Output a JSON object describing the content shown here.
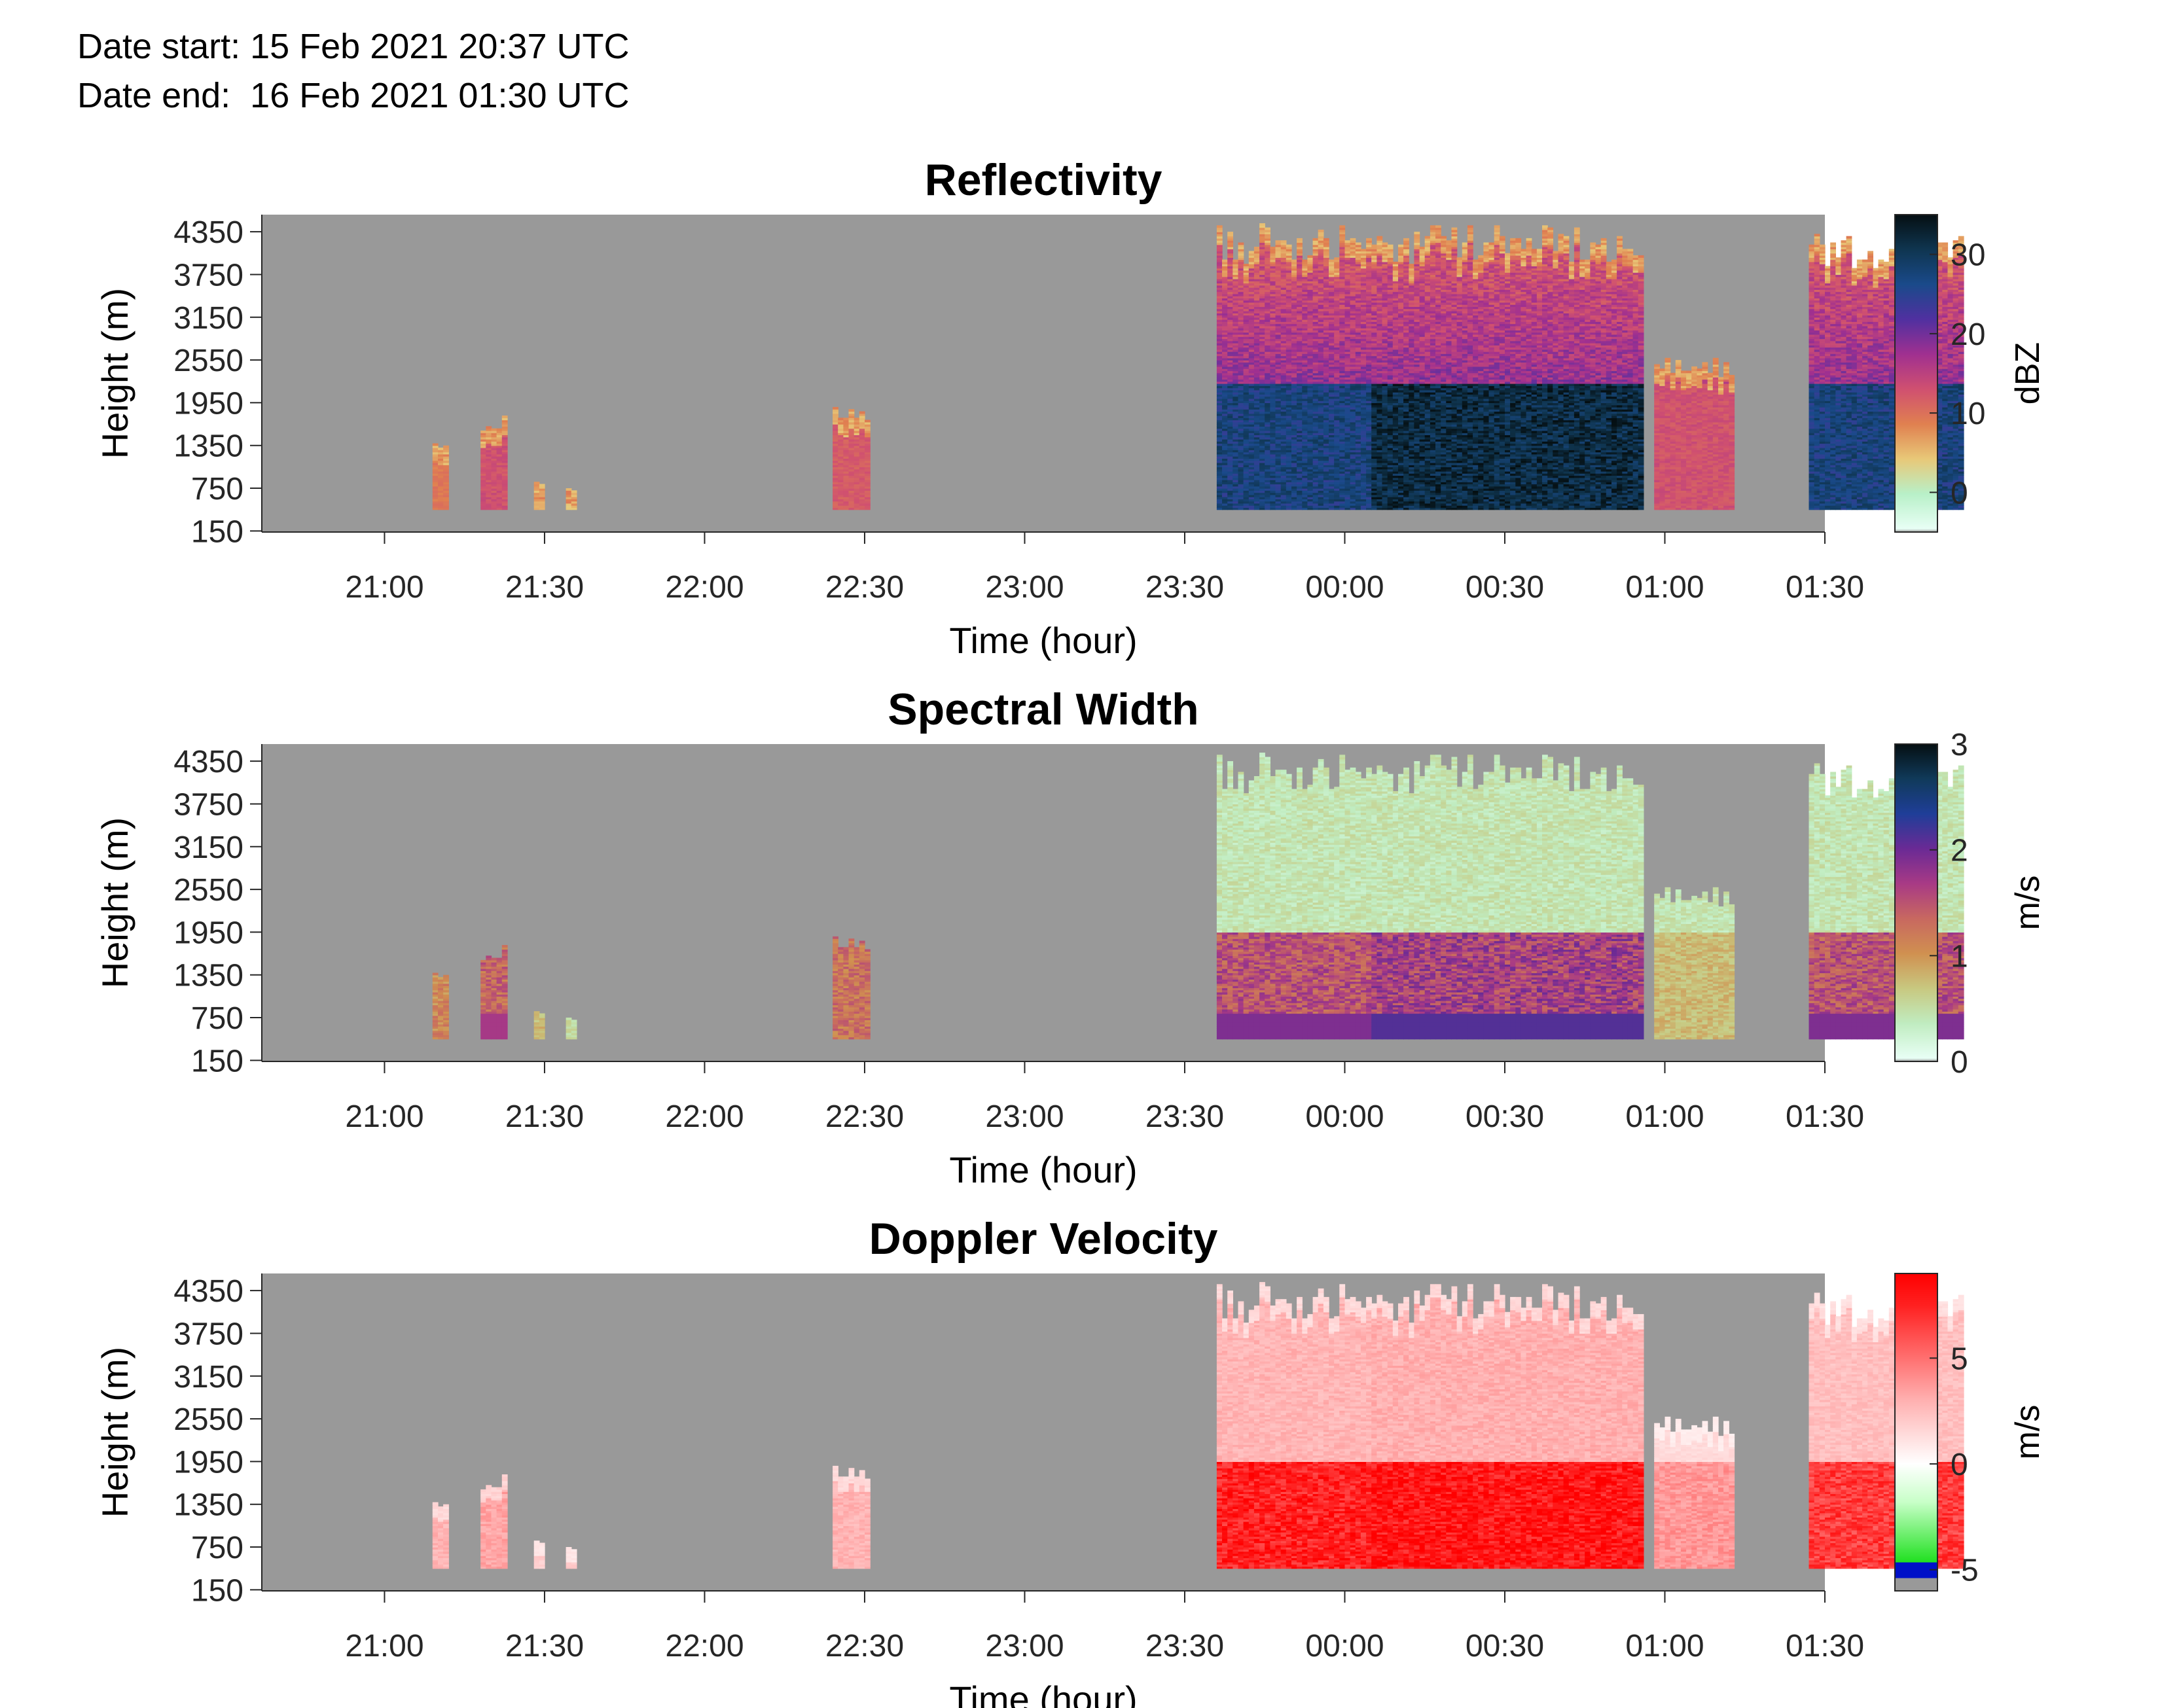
{
  "header": {
    "date_start": "Date start: 15 Feb 2021 20:37 UTC",
    "date_end": "Date end:  16 Feb 2021 01:30 UTC"
  },
  "colors": {
    "background_gray": "#999999",
    "axis_color": "#262626"
  },
  "chart_data": [
    {
      "type": "heatmap",
      "title": "Reflectivity",
      "xlabel": "Time (hour)",
      "ylabel": "Height (m)",
      "xticks": [
        "21:00",
        "21:30",
        "22:00",
        "22:30",
        "23:00",
        "23:30",
        "00:00",
        "00:30",
        "01:00",
        "01:30"
      ],
      "yticks": [
        "150",
        "750",
        "1350",
        "1950",
        "2550",
        "3150",
        "3750",
        "4350"
      ],
      "x_range_min": [
        -23,
        270
      ],
      "y_range_m": [
        150,
        4350
      ],
      "colorbar": {
        "label": "dBZ",
        "ticks": [
          "0",
          "10",
          "20",
          "30"
        ],
        "range": [
          -5,
          35
        ]
      },
      "colormap": "reflectivity",
      "echo_regions": [
        {
          "t": [
            9,
            12
          ],
          "h": [
            450,
            1450
          ],
          "peak": 10
        },
        {
          "t": [
            18,
            23
          ],
          "h": [
            450,
            1750
          ],
          "peak": 14
        },
        {
          "t": [
            28,
            30
          ],
          "h": [
            450,
            850
          ],
          "peak": 6
        },
        {
          "t": [
            34,
            36
          ],
          "h": [
            450,
            750
          ],
          "peak": 4
        },
        {
          "t": [
            84,
            91
          ],
          "h": [
            450,
            1900
          ],
          "peak": 13
        },
        {
          "t": [
            156,
            185
          ],
          "h": [
            450,
            4450
          ],
          "peak": 30
        },
        {
          "t": [
            185,
            236
          ],
          "h": [
            450,
            4450
          ],
          "peak": 35
        },
        {
          "t": [
            238,
            253
          ],
          "h": [
            450,
            2600
          ],
          "peak": 14
        },
        {
          "t": [
            267,
            296
          ],
          "h": [
            450,
            4400
          ],
          "peak": 30
        }
      ]
    },
    {
      "type": "heatmap",
      "title": "Spectral Width",
      "xlabel": "Time (hour)",
      "ylabel": "Height (m)",
      "xticks": [
        "21:00",
        "21:30",
        "22:00",
        "22:30",
        "23:00",
        "23:30",
        "00:00",
        "00:30",
        "01:00",
        "01:30"
      ],
      "yticks": [
        "150",
        "750",
        "1350",
        "1950",
        "2550",
        "3150",
        "3750",
        "4350"
      ],
      "x_range_min": [
        -23,
        270
      ],
      "y_range_m": [
        150,
        4350
      ],
      "colorbar": {
        "label": "m/s",
        "ticks": [
          "0",
          "1",
          "2",
          "3"
        ],
        "range": [
          0,
          3
        ]
      },
      "colormap": "spectral_width",
      "echo_regions": [
        {
          "t": [
            9,
            12
          ],
          "h": [
            450,
            1450
          ],
          "peak": 1.3
        },
        {
          "t": [
            18,
            23
          ],
          "h": [
            450,
            1750
          ],
          "peak": 1.6
        },
        {
          "t": [
            28,
            30
          ],
          "h": [
            450,
            850
          ],
          "peak": 0.9
        },
        {
          "t": [
            34,
            36
          ],
          "h": [
            450,
            750
          ],
          "peak": 0.6
        },
        {
          "t": [
            84,
            91
          ],
          "h": [
            450,
            1900
          ],
          "peak": 1.5
        },
        {
          "t": [
            156,
            185
          ],
          "h": [
            450,
            4450
          ],
          "peak": 1.8
        },
        {
          "t": [
            185,
            236
          ],
          "h": [
            450,
            4450
          ],
          "peak": 2.0
        },
        {
          "t": [
            238,
            253
          ],
          "h": [
            450,
            2600
          ],
          "peak": 0.9
        },
        {
          "t": [
            267,
            296
          ],
          "h": [
            450,
            4400
          ],
          "peak": 1.8
        }
      ]
    },
    {
      "type": "heatmap",
      "title": "Doppler Velocity",
      "xlabel": "Time (hour)",
      "ylabel": "Height (m)",
      "xticks": [
        "21:00",
        "21:30",
        "22:00",
        "22:30",
        "23:00",
        "23:30",
        "00:00",
        "00:30",
        "01:00",
        "01:30"
      ],
      "yticks": [
        "150",
        "750",
        "1350",
        "1950",
        "2550",
        "3150",
        "3750",
        "4350"
      ],
      "x_range_min": [
        -23,
        270
      ],
      "y_range_m": [
        150,
        4350
      ],
      "colorbar": {
        "label": "m/s",
        "ticks": [
          "-5",
          "0",
          "5"
        ],
        "range": [
          -6,
          9
        ]
      },
      "colormap": "doppler",
      "echo_regions": [
        {
          "t": [
            9,
            12
          ],
          "h": [
            450,
            1450
          ],
          "peak": 3
        },
        {
          "t": [
            18,
            23
          ],
          "h": [
            450,
            1750
          ],
          "peak": 3.5
        },
        {
          "t": [
            28,
            30
          ],
          "h": [
            450,
            850
          ],
          "peak": 2
        },
        {
          "t": [
            34,
            36
          ],
          "h": [
            450,
            750
          ],
          "peak": 2
        },
        {
          "t": [
            84,
            91
          ],
          "h": [
            450,
            1900
          ],
          "peak": 3
        },
        {
          "t": [
            156,
            185
          ],
          "h": [
            450,
            4450
          ],
          "peak": 8
        },
        {
          "t": [
            185,
            236
          ],
          "h": [
            450,
            4450
          ],
          "peak": 8.5
        },
        {
          "t": [
            238,
            253
          ],
          "h": [
            450,
            2600
          ],
          "peak": 4
        },
        {
          "t": [
            267,
            296
          ],
          "h": [
            450,
            4400
          ],
          "peak": 7
        }
      ]
    }
  ]
}
